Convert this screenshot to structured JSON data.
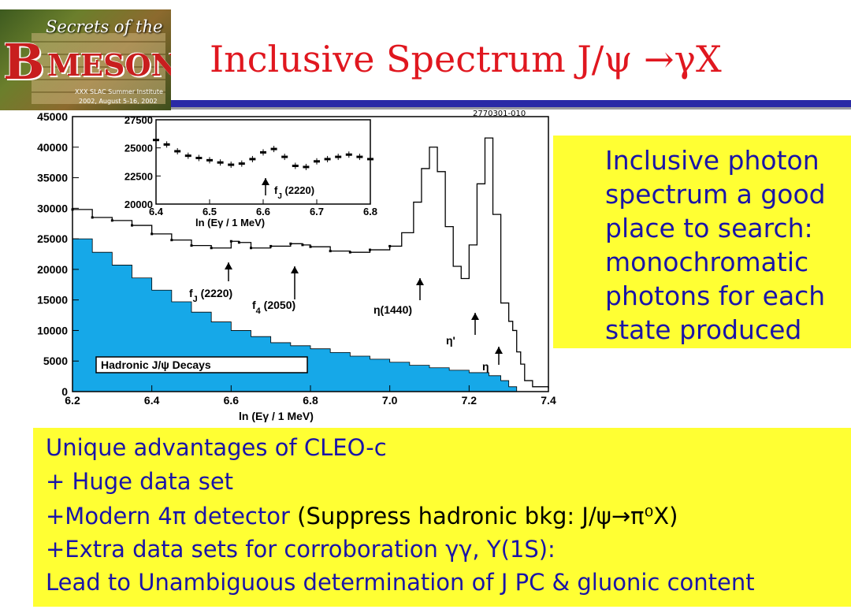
{
  "logo": {
    "line1": "Secrets of the",
    "line2": "B",
    "line3": "MESON",
    "line4": "XXX SLAC Summer Institute",
    "line5": "2002, August 5-16, 2002"
  },
  "title": "Inclusive Spectrum J/ψ →γX",
  "plot_id": "2770301-010",
  "sidebox": {
    "text": "Inclusive photon spectrum a good place to search: monochromatic photons for each state produced"
  },
  "bottom": {
    "line1": "Unique advantages of CLEO-c",
    "line2": "+ Huge data set",
    "line3a": "+Modern 4π detector ",
    "line3b": "(Suppress hadronic bkg: J/ψ→π⁰X)",
    "line4": "+Extra data sets for corroboration γγ, Υ(1S):",
    "line5": "Lead to Unambiguous determination of J PC & gluonic content"
  },
  "colors": {
    "title": "#e0171f",
    "box": "#ffff33",
    "text": "#1a14a8",
    "fill": "#16a8e8",
    "band": "#2a2aa6"
  },
  "chart_data": [
    {
      "type": "line",
      "xlabel": "ln (Eγ / 1 MeV)",
      "ylabel": "",
      "xlim": [
        6.2,
        7.4
      ],
      "ylim": [
        0,
        45000
      ],
      "xticks": [
        "6.2",
        "6.4",
        "6.6",
        "6.8",
        "7.0",
        "7.2",
        "7.4"
      ],
      "yticks": [
        "0",
        "5000",
        "10000",
        "15000",
        "20000",
        "25000",
        "30000",
        "35000",
        "40000",
        "45000"
      ],
      "series": [
        {
          "name": "",
          "x": [
            6.2,
            6.25,
            6.3,
            6.35,
            6.4,
            6.45,
            6.5,
            6.55,
            6.6,
            6.62,
            6.65,
            6.7,
            6.75,
            6.78,
            6.8,
            6.85,
            6.9,
            6.95,
            7.0,
            7.03,
            7.06,
            7.08,
            7.1,
            7.12,
            7.14,
            7.16,
            7.18,
            7.2,
            7.22,
            7.24,
            7.26,
            7.28,
            7.3,
            7.31,
            7.32,
            7.33,
            7.34,
            7.36,
            7.4
          ],
          "values": [
            29800,
            28500,
            28000,
            27200,
            25800,
            24800,
            23900,
            23500,
            24600,
            24400,
            23500,
            23800,
            24200,
            24000,
            23700,
            23000,
            22800,
            23200,
            23800,
            26000,
            31000,
            36500,
            40000,
            36000,
            27000,
            20500,
            18500,
            24000,
            34000,
            41500,
            29000,
            14500,
            11500,
            10000,
            6500,
            4500,
            1800,
            800,
            500
          ]
        },
        {
          "name": "Hadronic J/ψ Decays",
          "x": [
            6.2,
            6.25,
            6.3,
            6.35,
            6.4,
            6.45,
            6.5,
            6.55,
            6.6,
            6.65,
            6.7,
            6.75,
            6.8,
            6.85,
            6.9,
            6.95,
            7.0,
            7.05,
            7.1,
            7.15,
            7.2,
            7.25,
            7.28,
            7.3,
            7.32
          ],
          "values": [
            25000,
            22800,
            20700,
            18600,
            16600,
            14700,
            13000,
            11400,
            10000,
            9000,
            8000,
            7500,
            7000,
            6400,
            5800,
            5300,
            4800,
            4300,
            3900,
            3500,
            3100,
            2600,
            1800,
            800,
            0
          ]
        }
      ],
      "annotations": [
        {
          "label": "f",
          "sub": "J",
          "rest": " (2220)",
          "x": 6.6
        },
        {
          "label": "f",
          "sub": "4",
          "rest": " (2050)",
          "x": 6.75
        },
        {
          "label": "η(1440)",
          "x": 7.08
        },
        {
          "label": "η'",
          "x": 7.26
        },
        {
          "label": "η",
          "x": 7.31
        }
      ],
      "legend": "Hadronic J/ψ Decays"
    },
    {
      "type": "line",
      "xlabel": "ln (Eγ / 1 MeV)",
      "xlim": [
        6.4,
        6.8
      ],
      "ylim": [
        20000,
        27500
      ],
      "xticks": [
        "6.4",
        "6.5",
        "6.6",
        "6.7",
        "6.8"
      ],
      "yticks": [
        "20000",
        "22500",
        "25000",
        "27500"
      ],
      "series": [
        {
          "name": "",
          "x": [
            6.4,
            6.42,
            6.44,
            6.46,
            6.48,
            6.5,
            6.52,
            6.54,
            6.56,
            6.58,
            6.6,
            6.62,
            6.64,
            6.66,
            6.68,
            6.7,
            6.72,
            6.74,
            6.76,
            6.78,
            6.8
          ],
          "values": [
            25700,
            25300,
            24700,
            24300,
            24100,
            23900,
            23700,
            23500,
            23600,
            24000,
            24600,
            24900,
            24200,
            23400,
            23300,
            23800,
            24000,
            24200,
            24400,
            24200,
            24000
          ]
        }
      ],
      "annotations": [
        {
          "label": "f",
          "sub": "J",
          "rest": " (2220)",
          "x": 6.62
        }
      ]
    }
  ]
}
